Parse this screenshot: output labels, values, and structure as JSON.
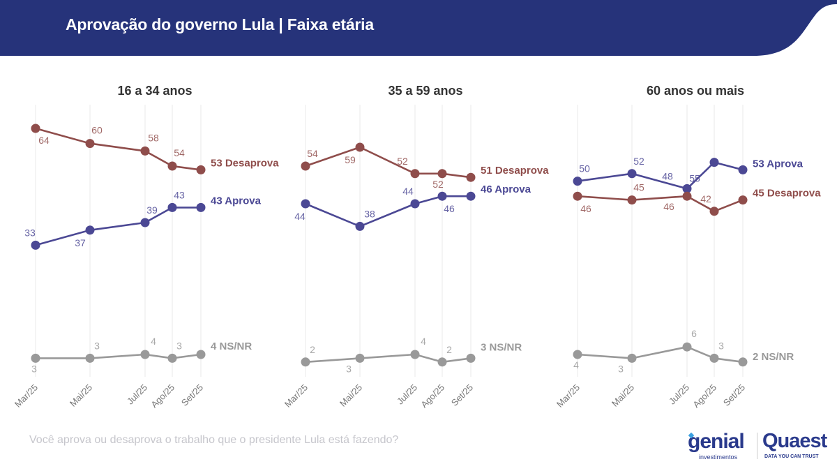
{
  "header": {
    "title": "Aprovação do governo Lula | Faixa etária",
    "color": "#26337a"
  },
  "footer": {
    "question": "Você aprova ou desaprova o trabalho que o presidente Lula está fazendo?",
    "logo_genial": "genial",
    "logo_genial_sub": "investimentos",
    "logo_quaest": "Quaest",
    "logo_quaest_sub": "DATA YOU CAN TRUST"
  },
  "colors": {
    "aprova": "#4b4894",
    "desaprova": "#8f4d4b",
    "nsnr": "#999999"
  },
  "chart_data": [
    {
      "type": "line",
      "title": "16 a 34 anos",
      "categories": [
        "Mar/25",
        "Mai/25",
        "Jul/25",
        "Ago/25",
        "Set/25"
      ],
      "series": [
        {
          "name": "Desaprova",
          "key": "desaprova",
          "values": [
            64,
            60,
            58,
            54,
            53
          ],
          "end_label": "53 Desaprova"
        },
        {
          "name": "Aprova",
          "key": "aprova",
          "values": [
            33,
            37,
            39,
            43,
            43
          ],
          "end_label": "43 Aprova"
        },
        {
          "name": "NS/NR",
          "key": "nsnr",
          "values": [
            3,
            3,
            4,
            3,
            4
          ],
          "end_label": "4 NS/NR"
        }
      ],
      "grid": "vertical",
      "ylim": [
        0,
        70
      ]
    },
    {
      "type": "line",
      "title": "35 a 59 anos",
      "categories": [
        "Mar/25",
        "Mai/25",
        "Jul/25",
        "Ago/25",
        "Set/25"
      ],
      "series": [
        {
          "name": "Desaprova",
          "key": "desaprova",
          "values": [
            54,
            59,
            52,
            52,
            51
          ],
          "end_label": "51 Desaprova"
        },
        {
          "name": "Aprova",
          "key": "aprova",
          "values": [
            44,
            38,
            44,
            46,
            46
          ],
          "end_label": "46 Aprova"
        },
        {
          "name": "NS/NR",
          "key": "nsnr",
          "values": [
            2,
            3,
            4,
            2,
            3
          ],
          "end_label": "3 NS/NR"
        }
      ],
      "grid": "vertical",
      "ylim": [
        0,
        70
      ]
    },
    {
      "type": "line",
      "title": "60 anos ou mais",
      "categories": [
        "Mar/25",
        "Mai/25",
        "Jul/25",
        "Ago/25",
        "Set/25"
      ],
      "series": [
        {
          "name": "Aprova",
          "key": "aprova",
          "values": [
            50,
            52,
            48,
            55,
            53
          ],
          "end_label": "53 Aprova"
        },
        {
          "name": "Desaprova",
          "key": "desaprova",
          "values": [
            46,
            45,
            46,
            42,
            45
          ],
          "end_label": "45 Desaprova"
        },
        {
          "name": "NS/NR",
          "key": "nsnr",
          "values": [
            4,
            3,
            6,
            3,
            2
          ],
          "end_label": "2 NS/NR"
        }
      ],
      "grid": "vertical",
      "ylim": [
        0,
        70
      ]
    }
  ]
}
